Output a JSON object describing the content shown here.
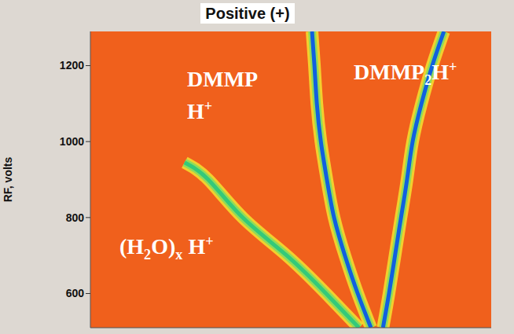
{
  "chart_data": {
    "type": "line",
    "title": "Positive (+)",
    "ylabel": "RF, volts",
    "xlim": [
      0,
      100
    ],
    "ylim": [
      510,
      1290
    ],
    "yticks": [
      600,
      800,
      1000,
      1200
    ],
    "grid": false,
    "tick_labels": "y",
    "series": [
      {
        "name": "(H2O)x H+",
        "color": "#34c97a",
        "x": [
          67,
          58.8,
          49,
          38,
          29.4,
          23.5
        ],
        "values": [
          510,
          600,
          700,
          800,
          900,
          945
        ]
      },
      {
        "name": "DMMP H+",
        "color": "#1060e0",
        "x": [
          70,
          66.7,
          63.5,
          60.8,
          59,
          57.5,
          56.5,
          55.9,
          55.3
        ],
        "values": [
          510,
          600,
          700,
          800,
          900,
          1000,
          1100,
          1200,
          1290
        ]
      },
      {
        "name": "DMMP2H+",
        "color": "#1060e0",
        "x": [
          73,
          74.5,
          76,
          77.5,
          79,
          80.4,
          82.6,
          85.3,
          88.2
        ],
        "values": [
          510,
          600,
          700,
          800,
          900,
          1000,
          1100,
          1200,
          1290
        ]
      }
    ]
  }
}
